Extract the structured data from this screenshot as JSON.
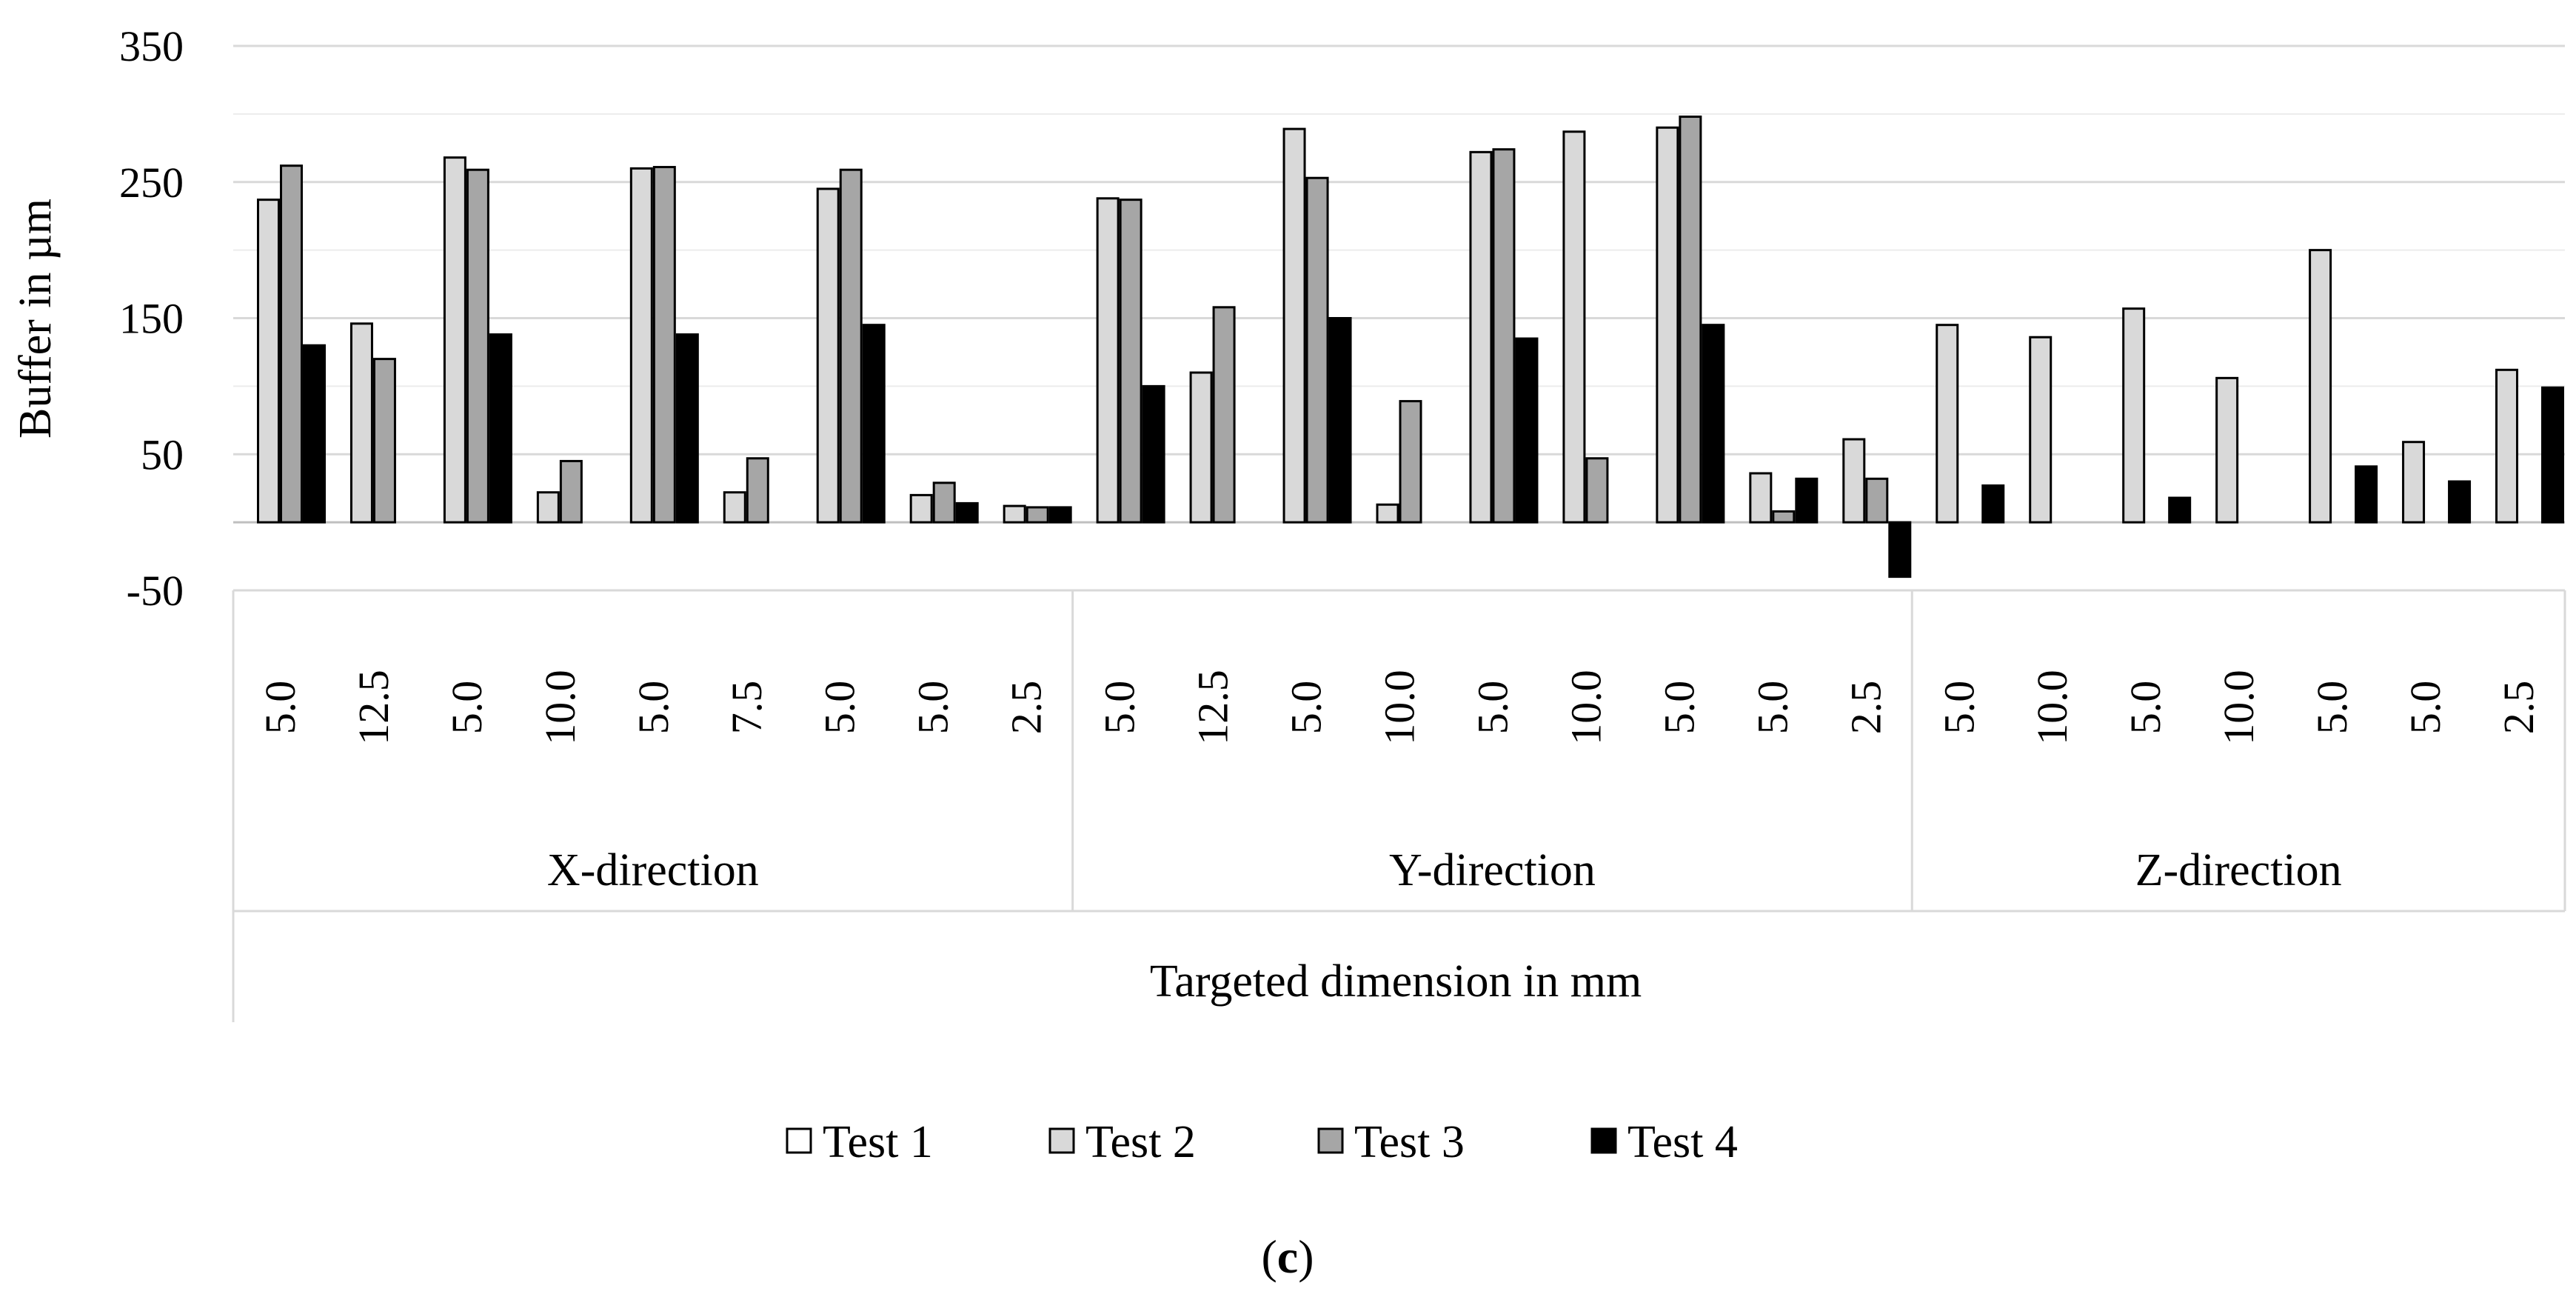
{
  "chart_data": {
    "type": "bar",
    "ylabel": "Buffer in µm",
    "xlabel": "Targeted dimension in mm",
    "ylim": [
      -50,
      350
    ],
    "y_ticks": [
      350,
      250,
      150,
      50,
      -50
    ],
    "y_tick_labels": [
      "350",
      "250",
      "150",
      "50",
      "-50"
    ],
    "grid": "horizontal",
    "groups": [
      {
        "label": "X-direction",
        "categories": [
          "5.0",
          "12.5",
          "5.0",
          "10.0",
          "5.0",
          "7.5",
          "5.0",
          "5.0",
          "2.5"
        ]
      },
      {
        "label": "Y-direction",
        "categories": [
          "5.0",
          "12.5",
          "5.0",
          "10.0",
          "5.0",
          "10.0",
          "5.0",
          "5.0",
          "2.5"
        ]
      },
      {
        "label": "Z-direction",
        "categories": [
          "5.0",
          "10.0",
          "5.0",
          "10.0",
          "5.0",
          "5.0",
          "2.5"
        ]
      }
    ],
    "series": [
      {
        "name": "Test 1",
        "color": "#ffffff",
        "values": [
          null,
          null,
          null,
          null,
          null,
          null,
          null,
          null,
          null,
          null,
          null,
          null,
          null,
          null,
          null,
          null,
          null,
          null,
          null,
          null,
          null,
          null,
          null,
          null,
          null
        ]
      },
      {
        "name": "Test 2",
        "color": "#d9d9d9",
        "values": [
          237,
          146,
          268,
          22,
          260,
          22,
          245,
          20,
          12,
          238,
          110,
          289,
          13,
          272,
          287,
          290,
          36,
          61,
          145,
          136,
          157,
          106,
          200,
          59,
          112
        ]
      },
      {
        "name": "Test 3",
        "color": "#a6a6a6",
        "values": [
          262,
          120,
          259,
          45,
          261,
          47,
          259,
          29,
          11,
          237,
          158,
          253,
          89,
          274,
          47,
          298,
          8,
          32,
          null,
          null,
          null,
          null,
          null,
          null,
          null
        ]
      },
      {
        "name": "Test 4",
        "color": "#000000",
        "values": [
          130,
          null,
          138,
          null,
          138,
          null,
          145,
          14,
          11,
          100,
          null,
          150,
          null,
          135,
          null,
          145,
          32,
          -40,
          27,
          null,
          18,
          null,
          41,
          30,
          99
        ]
      }
    ],
    "legend_position": "bottom",
    "panel_label": "c"
  },
  "legend": {
    "items": [
      "Test 1",
      "Test 2",
      "Test 3",
      "Test 4"
    ]
  },
  "figure": {
    "panel_open": "(",
    "panel_letter": "c",
    "panel_close": ")"
  }
}
